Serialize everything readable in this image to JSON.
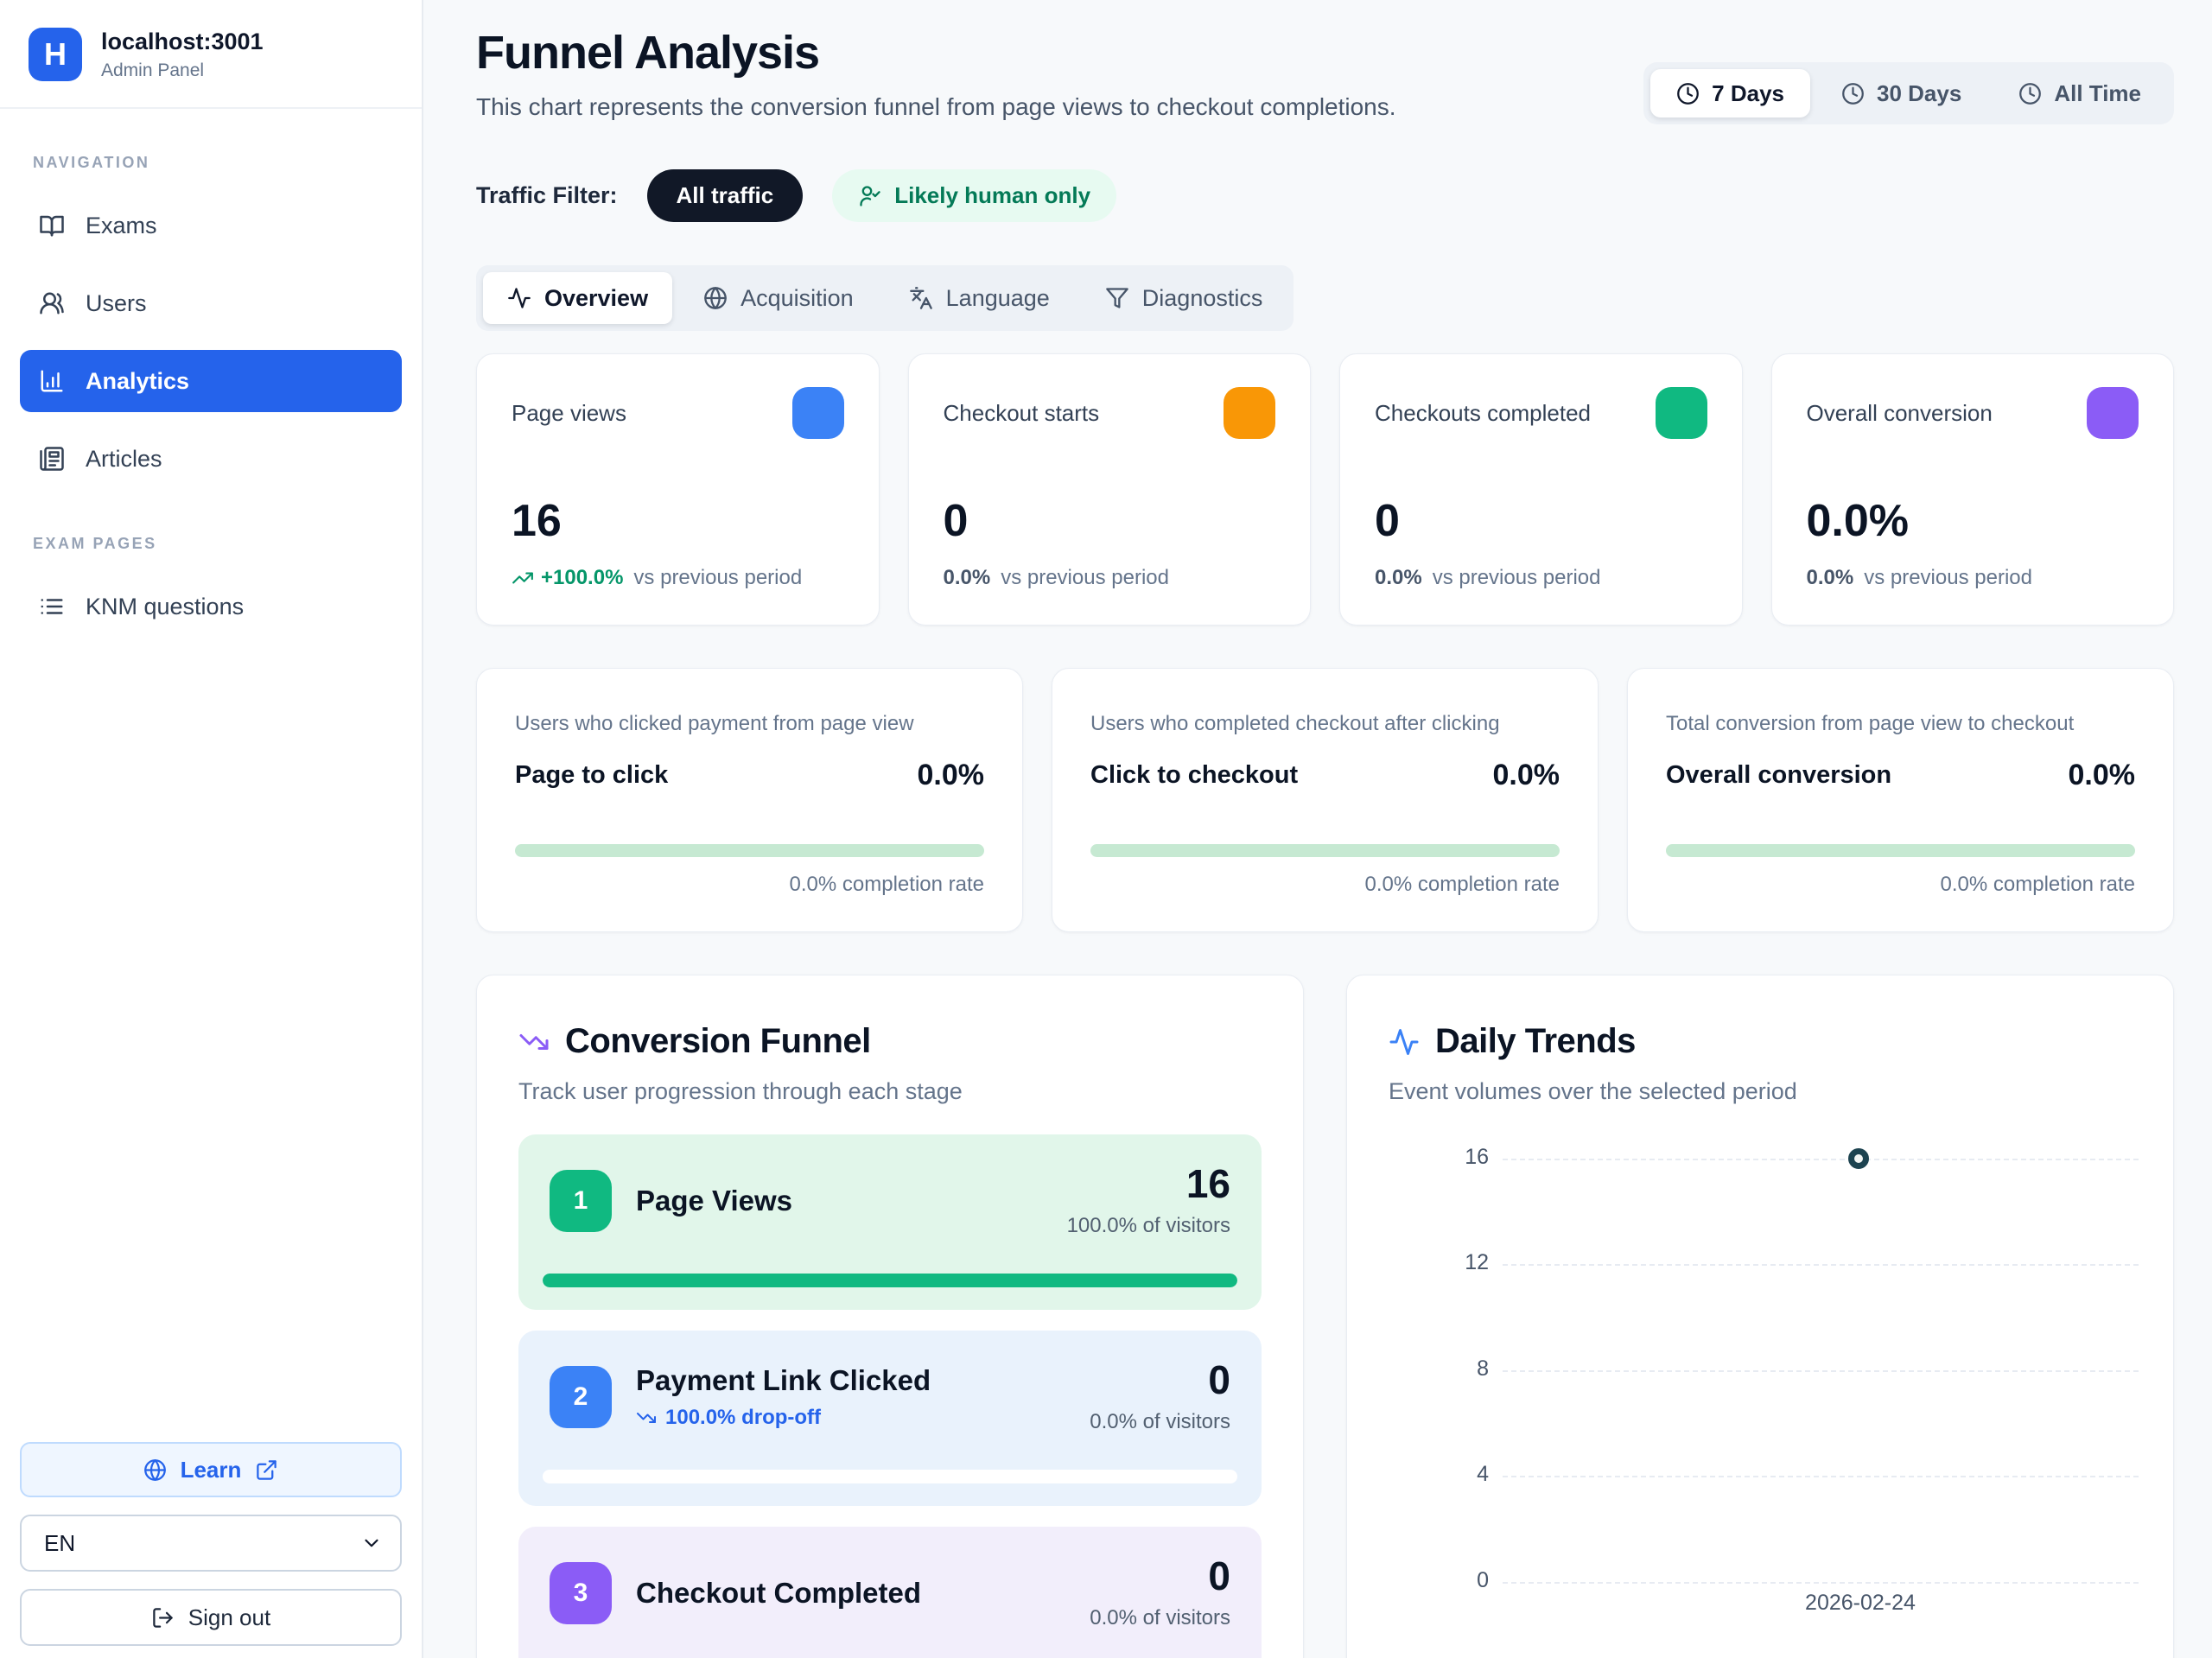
{
  "app": {
    "background": "#f7f9fb",
    "accent": "#2563eb"
  },
  "sidebar": {
    "logo_letter": "H",
    "title": "localhost:3001",
    "subtitle": "Admin Panel",
    "sections": {
      "nav": "NAVIGATION",
      "exam": "EXAM PAGES"
    },
    "nav_items": [
      {
        "label": "Exams",
        "icon": "book-open-icon",
        "active": false
      },
      {
        "label": "Users",
        "icon": "users-icon",
        "active": false
      },
      {
        "label": "Analytics",
        "icon": "bar-chart-icon",
        "active": true
      },
      {
        "label": "Articles",
        "icon": "newspaper-icon",
        "active": false
      }
    ],
    "exam_items": [
      {
        "label": "KNM questions",
        "icon": "list-icon",
        "active": false
      }
    ],
    "footer": {
      "learn_label": "Learn",
      "language_value": "EN",
      "sign_out_label": "Sign out"
    }
  },
  "header": {
    "title": "Funnel Analysis",
    "subtitle": "This chart represents the conversion funnel from page views to checkout completions.",
    "time_ranges": [
      {
        "label": "7 Days",
        "icon": "clock-icon",
        "active": true
      },
      {
        "label": "30 Days",
        "icon": "clock-icon",
        "active": false
      },
      {
        "label": "All Time",
        "icon": "clock-icon",
        "active": false
      }
    ]
  },
  "traffic_filter": {
    "label": "Traffic Filter:",
    "all_traffic": "All traffic",
    "human_only": "Likely human only",
    "human_only_icon": "user-check-icon"
  },
  "tabs": [
    {
      "label": "Overview",
      "icon": "activity-icon",
      "active": true
    },
    {
      "label": "Acquisition",
      "icon": "globe-icon",
      "active": false
    },
    {
      "label": "Language",
      "icon": "languages-icon",
      "active": false
    },
    {
      "label": "Diagnostics",
      "icon": "filter-icon",
      "active": false
    }
  ],
  "metric_cards": [
    {
      "label": "Page views",
      "value": "16",
      "delta": "+100.0%",
      "delta_positive": true,
      "delta_suffix": "vs previous period",
      "color": "#3b82f6"
    },
    {
      "label": "Checkout starts",
      "value": "0",
      "delta": "0.0%",
      "delta_positive": false,
      "delta_suffix": "vs previous period",
      "color": "#f99706"
    },
    {
      "label": "Checkouts completed",
      "value": "0",
      "delta": "0.0%",
      "delta_positive": false,
      "delta_suffix": "vs previous period",
      "color": "#10b981"
    },
    {
      "label": "Overall conversion",
      "value": "0.0%",
      "delta": "0.0%",
      "delta_positive": false,
      "delta_suffix": "vs previous period",
      "color": "#8b5cf6"
    }
  ],
  "rate_cards": [
    {
      "description": "Users who clicked payment from page view",
      "label": "Page to click",
      "value": "0.0%",
      "progress": 0,
      "footer": "0.0% completion rate"
    },
    {
      "description": "Users who completed checkout after clicking",
      "label": "Click to checkout",
      "value": "0.0%",
      "progress": 0,
      "footer": "0.0% completion rate"
    },
    {
      "description": "Total conversion from page view to checkout",
      "label": "Overall conversion",
      "value": "0.0%",
      "progress": 0,
      "footer": "0.0% completion rate"
    }
  ],
  "funnel": {
    "title": "Conversion Funnel",
    "title_icon": "trending-down-icon",
    "subtitle": "Track user progression through each stage",
    "stages": [
      {
        "step": "1",
        "label": "Page Views",
        "value": "16",
        "share": "100.0% of visitors",
        "progress": 100,
        "color": "#10b981",
        "bg": "#e1f6ea"
      },
      {
        "step": "2",
        "label": "Payment Link Clicked",
        "dropoff": "100.0% drop-off",
        "value": "0",
        "share": "0.0% of visitors",
        "progress": 0,
        "color": "#3b82f6",
        "bg": "#e9f2fc"
      },
      {
        "step": "3",
        "label": "Checkout Completed",
        "value": "0",
        "share": "0.0% of visitors",
        "progress": 0,
        "color": "#8b5cf6",
        "bg": "#f2eefb"
      }
    ]
  },
  "trends": {
    "title": "Daily Trends",
    "title_icon": "activity-icon",
    "subtitle": "Event volumes over the selected period",
    "y_tick_labels": [
      "16",
      "12",
      "8",
      "4",
      "0"
    ],
    "x_label": "2026-02-24",
    "point_color": "#1d4350"
  },
  "chart_data": {
    "type": "line",
    "title": "Daily Trends",
    "categories": [
      "2026-02-24"
    ],
    "values": [
      16
    ],
    "xlabel": "",
    "ylabel": "",
    "ylim": [
      0,
      16
    ],
    "y_ticks": [
      0,
      4,
      8,
      12,
      16
    ],
    "grid": "horizontal-dashed",
    "legend": "none",
    "point_style": "hollow-dot"
  }
}
